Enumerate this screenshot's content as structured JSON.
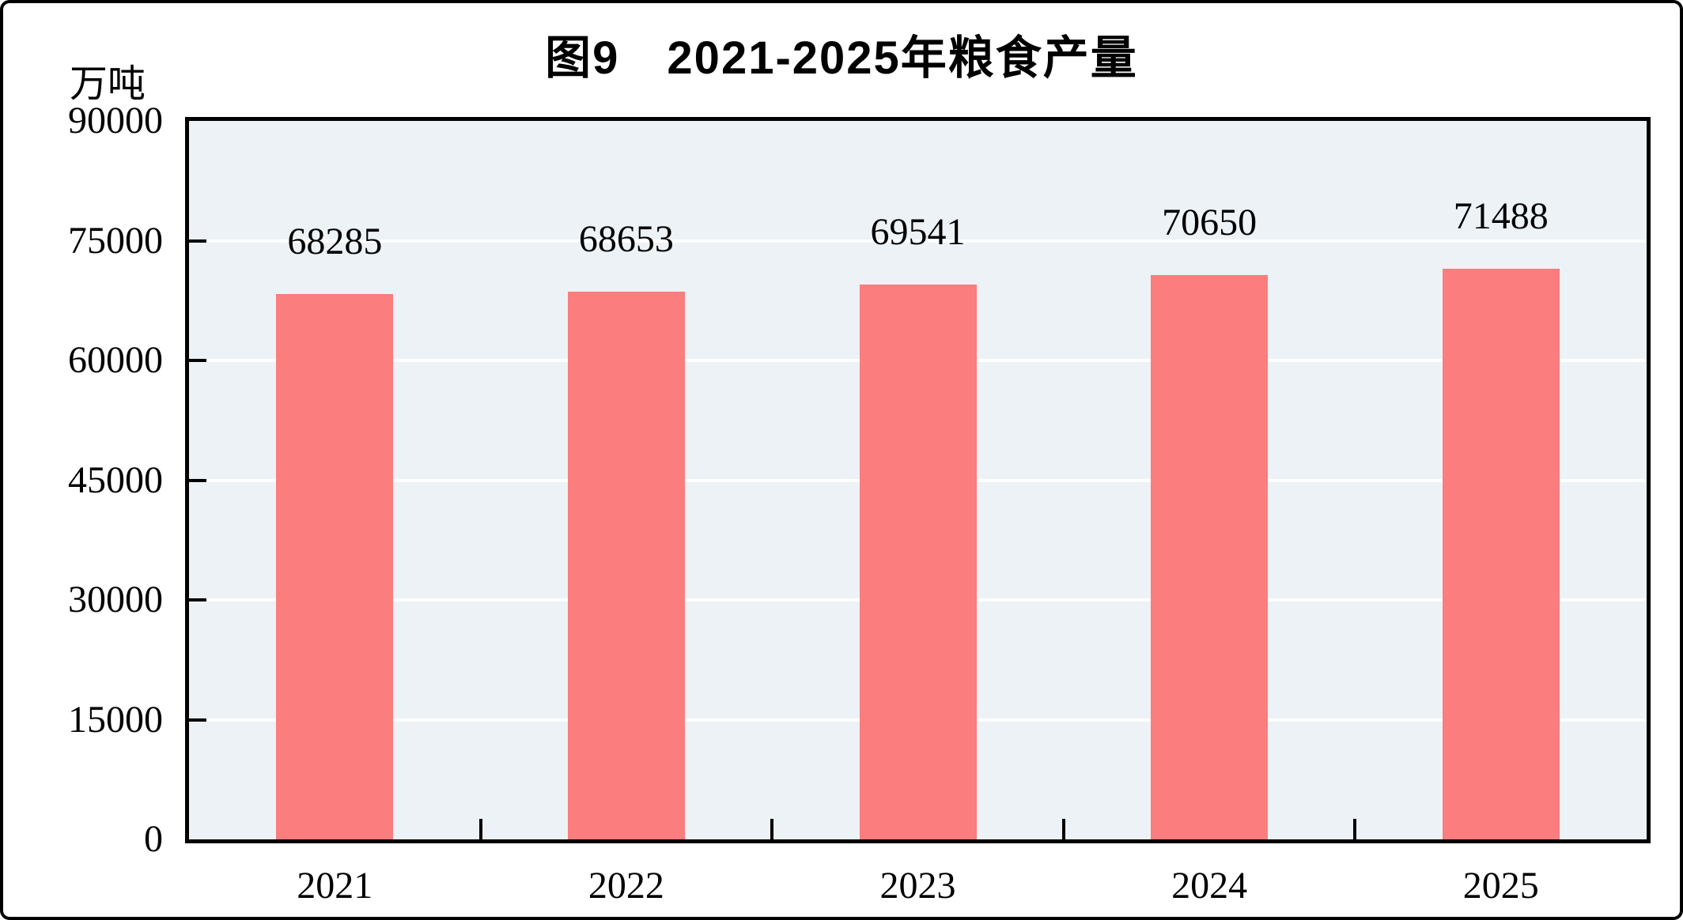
{
  "chart_data": {
    "type": "bar",
    "title": "图9　2021-2025年粮食产量",
    "unit": "万吨",
    "categories": [
      "2021",
      "2022",
      "2023",
      "2024",
      "2025"
    ],
    "values": [
      68285,
      68653,
      69541,
      70650,
      71488
    ],
    "xlabel": "",
    "ylabel": "万吨",
    "ylim": [
      0,
      90000
    ],
    "yticks": [
      0,
      15000,
      30000,
      45000,
      60000,
      75000,
      90000
    ],
    "grid": "horizontal",
    "legend_position": "none",
    "colors": {
      "bar": "#FB7D7D",
      "plot_background": "#EDF2F6",
      "gridline": "#FFFFFF",
      "axis": "#000000",
      "text": "#000000"
    }
  }
}
